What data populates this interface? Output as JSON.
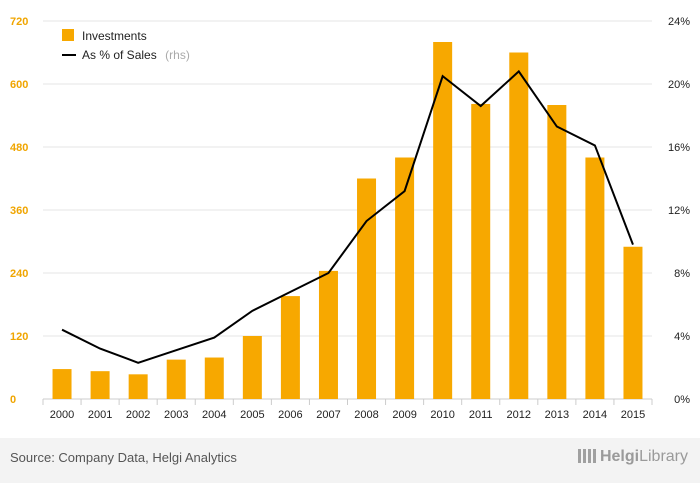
{
  "chart_data": {
    "type": "bar+line",
    "categories": [
      "2000",
      "2001",
      "2002",
      "2003",
      "2004",
      "2005",
      "2006",
      "2007",
      "2008",
      "2009",
      "2010",
      "2011",
      "2012",
      "2013",
      "2014",
      "2015"
    ],
    "series": [
      {
        "name": "Investments",
        "type": "bar",
        "axis": "left",
        "values": [
          57,
          53,
          47,
          75,
          79,
          120,
          196,
          244,
          420,
          460,
          680,
          562,
          660,
          560,
          460,
          290
        ]
      },
      {
        "name": "As % of Sales",
        "name_suffix": "(rhs)",
        "type": "line",
        "axis": "right",
        "values": [
          4.4,
          3.2,
          2.3,
          3.1,
          3.9,
          5.6,
          6.8,
          8.0,
          11.3,
          13.2,
          20.5,
          18.6,
          20.8,
          17.3,
          16.1,
          9.8
        ]
      }
    ],
    "y_left": {
      "min": 0,
      "max": 720,
      "ticks": [
        "0",
        "120",
        "240",
        "360",
        "480",
        "600",
        "720"
      ]
    },
    "y_right": {
      "min": 0,
      "max": 24,
      "ticks": [
        "0%",
        "4%",
        "8%",
        "12%",
        "16%",
        "20%",
        "24%"
      ]
    },
    "legend_position": "top-left",
    "grid": true,
    "colors": {
      "bar": "#f7a800",
      "line": "#000000",
      "left_ticks": "#f0a500",
      "grid": "#e6e6e6"
    }
  },
  "footer": {
    "source": "Source: Company Data, Helgi Analytics",
    "logo_main": "Helgi",
    "logo_sub": "Library"
  }
}
